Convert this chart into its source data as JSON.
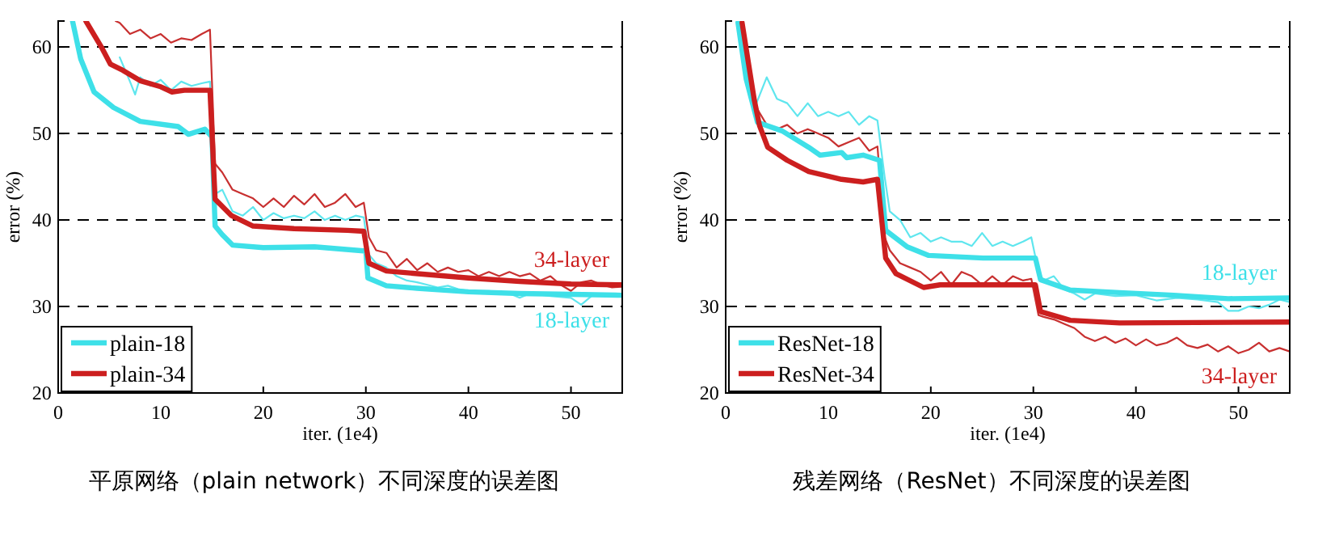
{
  "chart_data": [
    {
      "type": "line",
      "title": "平原网络（plain network）不同深度的误差图",
      "xlabel": "iter. (1e4)",
      "ylabel": "error (%)",
      "xlim": [
        0,
        55
      ],
      "ylim": [
        20,
        63
      ],
      "xticks": [
        0,
        10,
        20,
        30,
        40,
        50
      ],
      "yticks": [
        20,
        30,
        40,
        50,
        60
      ],
      "grid": "y",
      "legend": "bottom left",
      "line_style": "solid",
      "marker": "none",
      "annotations": [
        "18-layer",
        "34-layer"
      ],
      "series": [
        {
          "color": "#5fe6ee",
          "x": [
            6,
            7,
            7.5,
            8,
            9,
            10,
            11,
            12,
            13,
            14,
            14.8,
            15.3,
            16,
            17,
            18,
            19,
            20,
            21,
            22,
            23,
            24,
            25,
            26,
            27,
            28,
            29,
            29.8,
            30.3,
            31,
            32,
            33,
            34,
            35,
            36,
            37,
            38,
            39,
            40,
            42,
            44,
            45,
            46,
            48,
            50,
            51,
            52,
            53,
            55
          ],
          "values": [
            58.8,
            56,
            54.5,
            56.5,
            55.5,
            56.2,
            55,
            56,
            55.5,
            55.8,
            56,
            43,
            43.5,
            41,
            40.5,
            41.5,
            40,
            40.8,
            40.2,
            40.5,
            40.2,
            41,
            40,
            40.5,
            40,
            40.5,
            40.3,
            36,
            35,
            34.5,
            33.5,
            33,
            32.8,
            32.5,
            32.2,
            32.4,
            32,
            31.8,
            31.8,
            31.5,
            31,
            31.5,
            31.2,
            31,
            30.2,
            31.2,
            31.5,
            31.5
          ]
        },
        {
          "color": "#c83030",
          "x": [
            5.6,
            6,
            7,
            8,
            9,
            10,
            11,
            12,
            13,
            14,
            14.8,
            15.3,
            16,
            17,
            18,
            19,
            20,
            21,
            22,
            23,
            24,
            25,
            26,
            27,
            28,
            29,
            29.8,
            30.3,
            31,
            32,
            33,
            34,
            35,
            36,
            37,
            38,
            39,
            40,
            41,
            42,
            43,
            44,
            45,
            46,
            47,
            48,
            49,
            50,
            51,
            52,
            53,
            54,
            55
          ],
          "values": [
            63,
            62.8,
            61.5,
            62,
            61,
            61.5,
            60.5,
            61,
            60.8,
            61.5,
            62,
            46.5,
            45.5,
            43.5,
            43,
            42.5,
            41.5,
            42.5,
            41.5,
            42.8,
            41.8,
            43,
            41.5,
            42,
            43,
            41.5,
            42,
            38,
            36.5,
            36.2,
            34.5,
            35.5,
            34.2,
            35,
            34,
            34.5,
            34,
            34.2,
            33.5,
            34,
            33.5,
            34,
            33.5,
            33.8,
            33,
            33.5,
            32.5,
            31.8,
            32.8,
            33,
            32.5,
            32.2,
            32.3
          ]
        },
        {
          "name": "plain-18",
          "color": "#3ee0e8",
          "x": [
            1.4,
            2.2,
            3.5,
            5.4,
            8,
            11.7,
            12.7,
            14.3,
            15,
            15.3,
            16,
            17,
            20,
            25,
            30,
            30.2,
            32,
            35,
            40,
            45,
            50,
            55
          ],
          "values": [
            63,
            58.6,
            54.8,
            53,
            51.4,
            50.8,
            49.9,
            50.5,
            49.6,
            39.3,
            38.3,
            37.1,
            36.8,
            36.9,
            36.4,
            33.3,
            32.4,
            32.1,
            31.7,
            31.5,
            31.4,
            31.3
          ]
        },
        {
          "name": "plain-34",
          "color": "#cc1f1f",
          "x": [
            2.7,
            4.3,
            5.1,
            6.3,
            8,
            10,
            11.1,
            12.3,
            14.8,
            15.3,
            16.9,
            19,
            23,
            28.2,
            29.8,
            30.3,
            32,
            40,
            45,
            50,
            55
          ],
          "values": [
            63,
            59.8,
            58,
            57.3,
            56.1,
            55.4,
            54.8,
            55,
            55,
            42.4,
            40.5,
            39.3,
            39,
            38.8,
            38.7,
            35,
            34.1,
            33.3,
            32.9,
            32.6,
            32.5
          ]
        }
      ]
    },
    {
      "type": "line",
      "title": "残差网络（ResNet）不同深度的误差图",
      "xlabel": "iter. (1e4)",
      "ylabel": "error (%)",
      "xlim": [
        0,
        55
      ],
      "ylim": [
        20,
        63
      ],
      "xticks": [
        0,
        10,
        20,
        30,
        40,
        50
      ],
      "yticks": [
        20,
        30,
        40,
        50,
        60
      ],
      "grid": "y",
      "legend": "bottom left",
      "line_style": "solid",
      "marker": "none",
      "annotations": [
        "18-layer",
        "34-layer"
      ],
      "series": [
        {
          "color": "#5fe6ee",
          "x": [
            1.2,
            2,
            3,
            4,
            5,
            6,
            7,
            8,
            9,
            10,
            11,
            12,
            13,
            14,
            14.8,
            15.5,
            16,
            17,
            18,
            19,
            20,
            21,
            22,
            23,
            24,
            25,
            26,
            27,
            28,
            29,
            29.8,
            30.5,
            31,
            32,
            33,
            34,
            35,
            36,
            38,
            40,
            42,
            44,
            46,
            48,
            49,
            50,
            51,
            52,
            53,
            54,
            55
          ],
          "values": [
            62,
            56,
            53.5,
            56.5,
            54,
            53.5,
            52,
            53.5,
            52,
            52.5,
            52,
            52.5,
            51,
            52,
            51.5,
            45,
            41,
            40,
            38,
            38.5,
            37.5,
            38,
            37.5,
            37.5,
            37,
            38.5,
            37,
            37.5,
            37,
            37.5,
            38,
            34,
            33,
            33.5,
            32,
            31.5,
            30.8,
            31.5,
            31.2,
            31.3,
            30.7,
            31,
            30.8,
            30.5,
            29.5,
            29.5,
            30,
            29.8,
            30.2,
            30.8,
            30.5
          ]
        },
        {
          "color": "#c83030",
          "x": [
            1.5,
            2,
            3,
            4,
            5,
            6,
            7,
            8,
            9,
            10,
            11,
            12,
            13,
            14,
            14.8,
            15.5,
            16,
            17,
            18,
            19,
            20,
            21,
            22,
            23,
            24,
            25,
            26,
            27,
            28,
            29,
            29.8,
            30.5,
            31,
            32,
            33,
            34,
            35,
            36,
            37,
            38,
            39,
            40,
            41,
            42,
            43,
            44,
            45,
            46,
            47,
            48,
            49,
            50,
            51,
            52,
            53,
            54,
            55
          ],
          "values": [
            62,
            57,
            53,
            51,
            50.5,
            51,
            50,
            50.5,
            50,
            49.5,
            48.5,
            49,
            49.5,
            48,
            48.5,
            38,
            36.5,
            35,
            34.5,
            34,
            33,
            34,
            32.5,
            34,
            33.5,
            32.5,
            33.5,
            32.5,
            33.5,
            33,
            33.2,
            29,
            28.8,
            28.5,
            28,
            27.5,
            26.5,
            26,
            26.5,
            25.8,
            26.3,
            25.5,
            26.2,
            25.5,
            25.8,
            26.4,
            25.5,
            25.2,
            25.6,
            24.8,
            25.4,
            24.6,
            25,
            25.8,
            24.8,
            25.2,
            24.8
          ]
        },
        {
          "name": "ResNet-18",
          "color": "#3ee0e8",
          "x": [
            1.2,
            2,
            3.1,
            5.5,
            8.1,
            9.2,
            11.3,
            11.8,
            13.4,
            15,
            15.6,
            17.7,
            19.8,
            25.1,
            30.2,
            30.7,
            33.6,
            38.4,
            43.7,
            49,
            55
          ],
          "values": [
            62.8,
            56.3,
            51.3,
            50.3,
            48.4,
            47.5,
            47.8,
            47.2,
            47.5,
            46.9,
            38.8,
            36.9,
            35.9,
            35.6,
            35.6,
            33.1,
            31.9,
            31.6,
            31.3,
            30.9,
            31
          ]
        },
        {
          "name": "ResNet-34",
          "color": "#cc1f1f",
          "x": [
            1.6,
            2.8,
            3.3,
            4.1,
            6,
            8.1,
            11.3,
            13.4,
            14.8,
            15.6,
            16.6,
            19.3,
            20.9,
            25.1,
            30.2,
            30.7,
            33.6,
            38.4,
            55
          ],
          "values": [
            62.8,
            53.8,
            50.9,
            48.4,
            46.9,
            45.6,
            44.7,
            44.4,
            44.7,
            35.6,
            33.8,
            32.2,
            32.5,
            32.5,
            32.5,
            29.4,
            28.4,
            28.1,
            28.2
          ]
        }
      ]
    }
  ]
}
